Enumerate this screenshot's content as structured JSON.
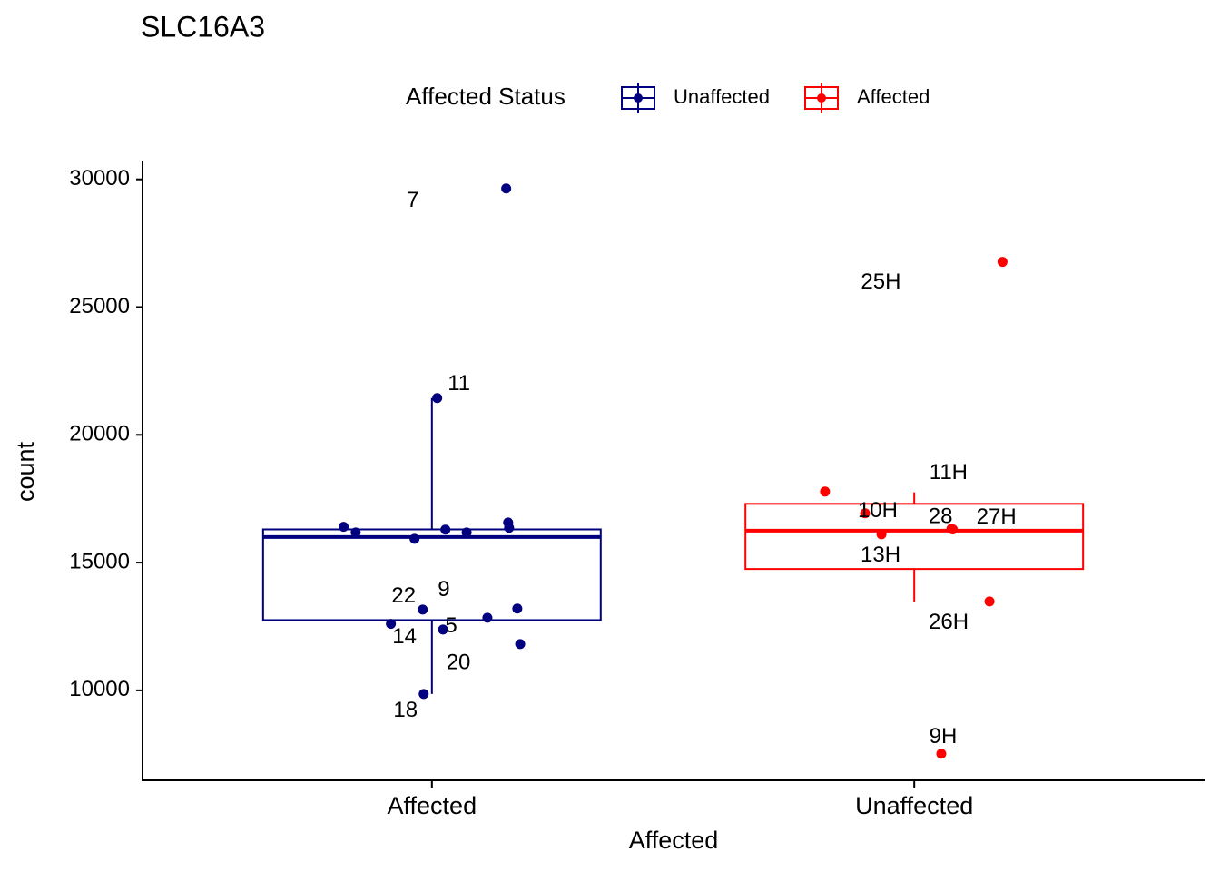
{
  "chart_data": {
    "type": "box",
    "title": "SLC16A3",
    "legend_title": "Affected Status",
    "legend_position": "top",
    "x_label": "Affected",
    "y_label": "count",
    "categories": [
      "Affected",
      "Unaffected"
    ],
    "ylim": [
      6480,
      30700
    ],
    "yticks": [
      10000,
      15000,
      20000,
      25000,
      30000
    ],
    "series": [
      {
        "name": "Unaffected",
        "color": "#000080",
        "box": {
          "whisker_low": 9860,
          "q1": 12750,
          "median": 16000,
          "q3": 16300,
          "whisker_high": 21440
        },
        "points": [
          {
            "x": 1.154,
            "y": 29645,
            "label": "7"
          },
          {
            "x": 1.011,
            "y": 21440,
            "label": "11"
          },
          {
            "x": 0.817,
            "y": 16400,
            "label": null
          },
          {
            "x": 0.842,
            "y": 16180,
            "label": null
          },
          {
            "x": 0.964,
            "y": 15930,
            "label": null
          },
          {
            "x": 1.028,
            "y": 16290,
            "label": null
          },
          {
            "x": 1.072,
            "y": 16180,
            "label": null
          },
          {
            "x": 1.158,
            "y": 16570,
            "label": null
          },
          {
            "x": 1.16,
            "y": 16360,
            "label": null
          },
          {
            "x": 0.981,
            "y": 13160,
            "label": "22"
          },
          {
            "x": 1.023,
            "y": 12380,
            "label": "5"
          },
          {
            "x": 0.915,
            "y": 12600,
            "label": "14"
          },
          {
            "x": 1.115,
            "y": 12840,
            "label": null
          },
          {
            "x": 1.177,
            "y": 13200,
            "label": "9"
          },
          {
            "x": 1.183,
            "y": 11810,
            "label": "20"
          },
          {
            "x": 0.983,
            "y": 9860,
            "label": "18"
          }
        ]
      },
      {
        "name": "Affected",
        "color": "#FF0000",
        "box": {
          "whisker_low": 13450,
          "q1": 14750,
          "median": 16250,
          "q3": 17300,
          "whisker_high": 17750
        },
        "points": [
          {
            "x": 2.183,
            "y": 26770,
            "label": "25H"
          },
          {
            "x": 1.815,
            "y": 17780,
            "label": "11H"
          },
          {
            "x": 1.898,
            "y": 16930,
            "label": "10H"
          },
          {
            "x": 1.932,
            "y": 16110,
            "label": "13H"
          },
          {
            "x": 2.077,
            "y": 16320,
            "label": "28"
          },
          {
            "x": 2.08,
            "y": 16300,
            "label": "27H"
          },
          {
            "x": 2.156,
            "y": 13480,
            "label": "26H"
          },
          {
            "x": 2.056,
            "y": 7520,
            "label": "9H"
          }
        ]
      }
    ]
  }
}
